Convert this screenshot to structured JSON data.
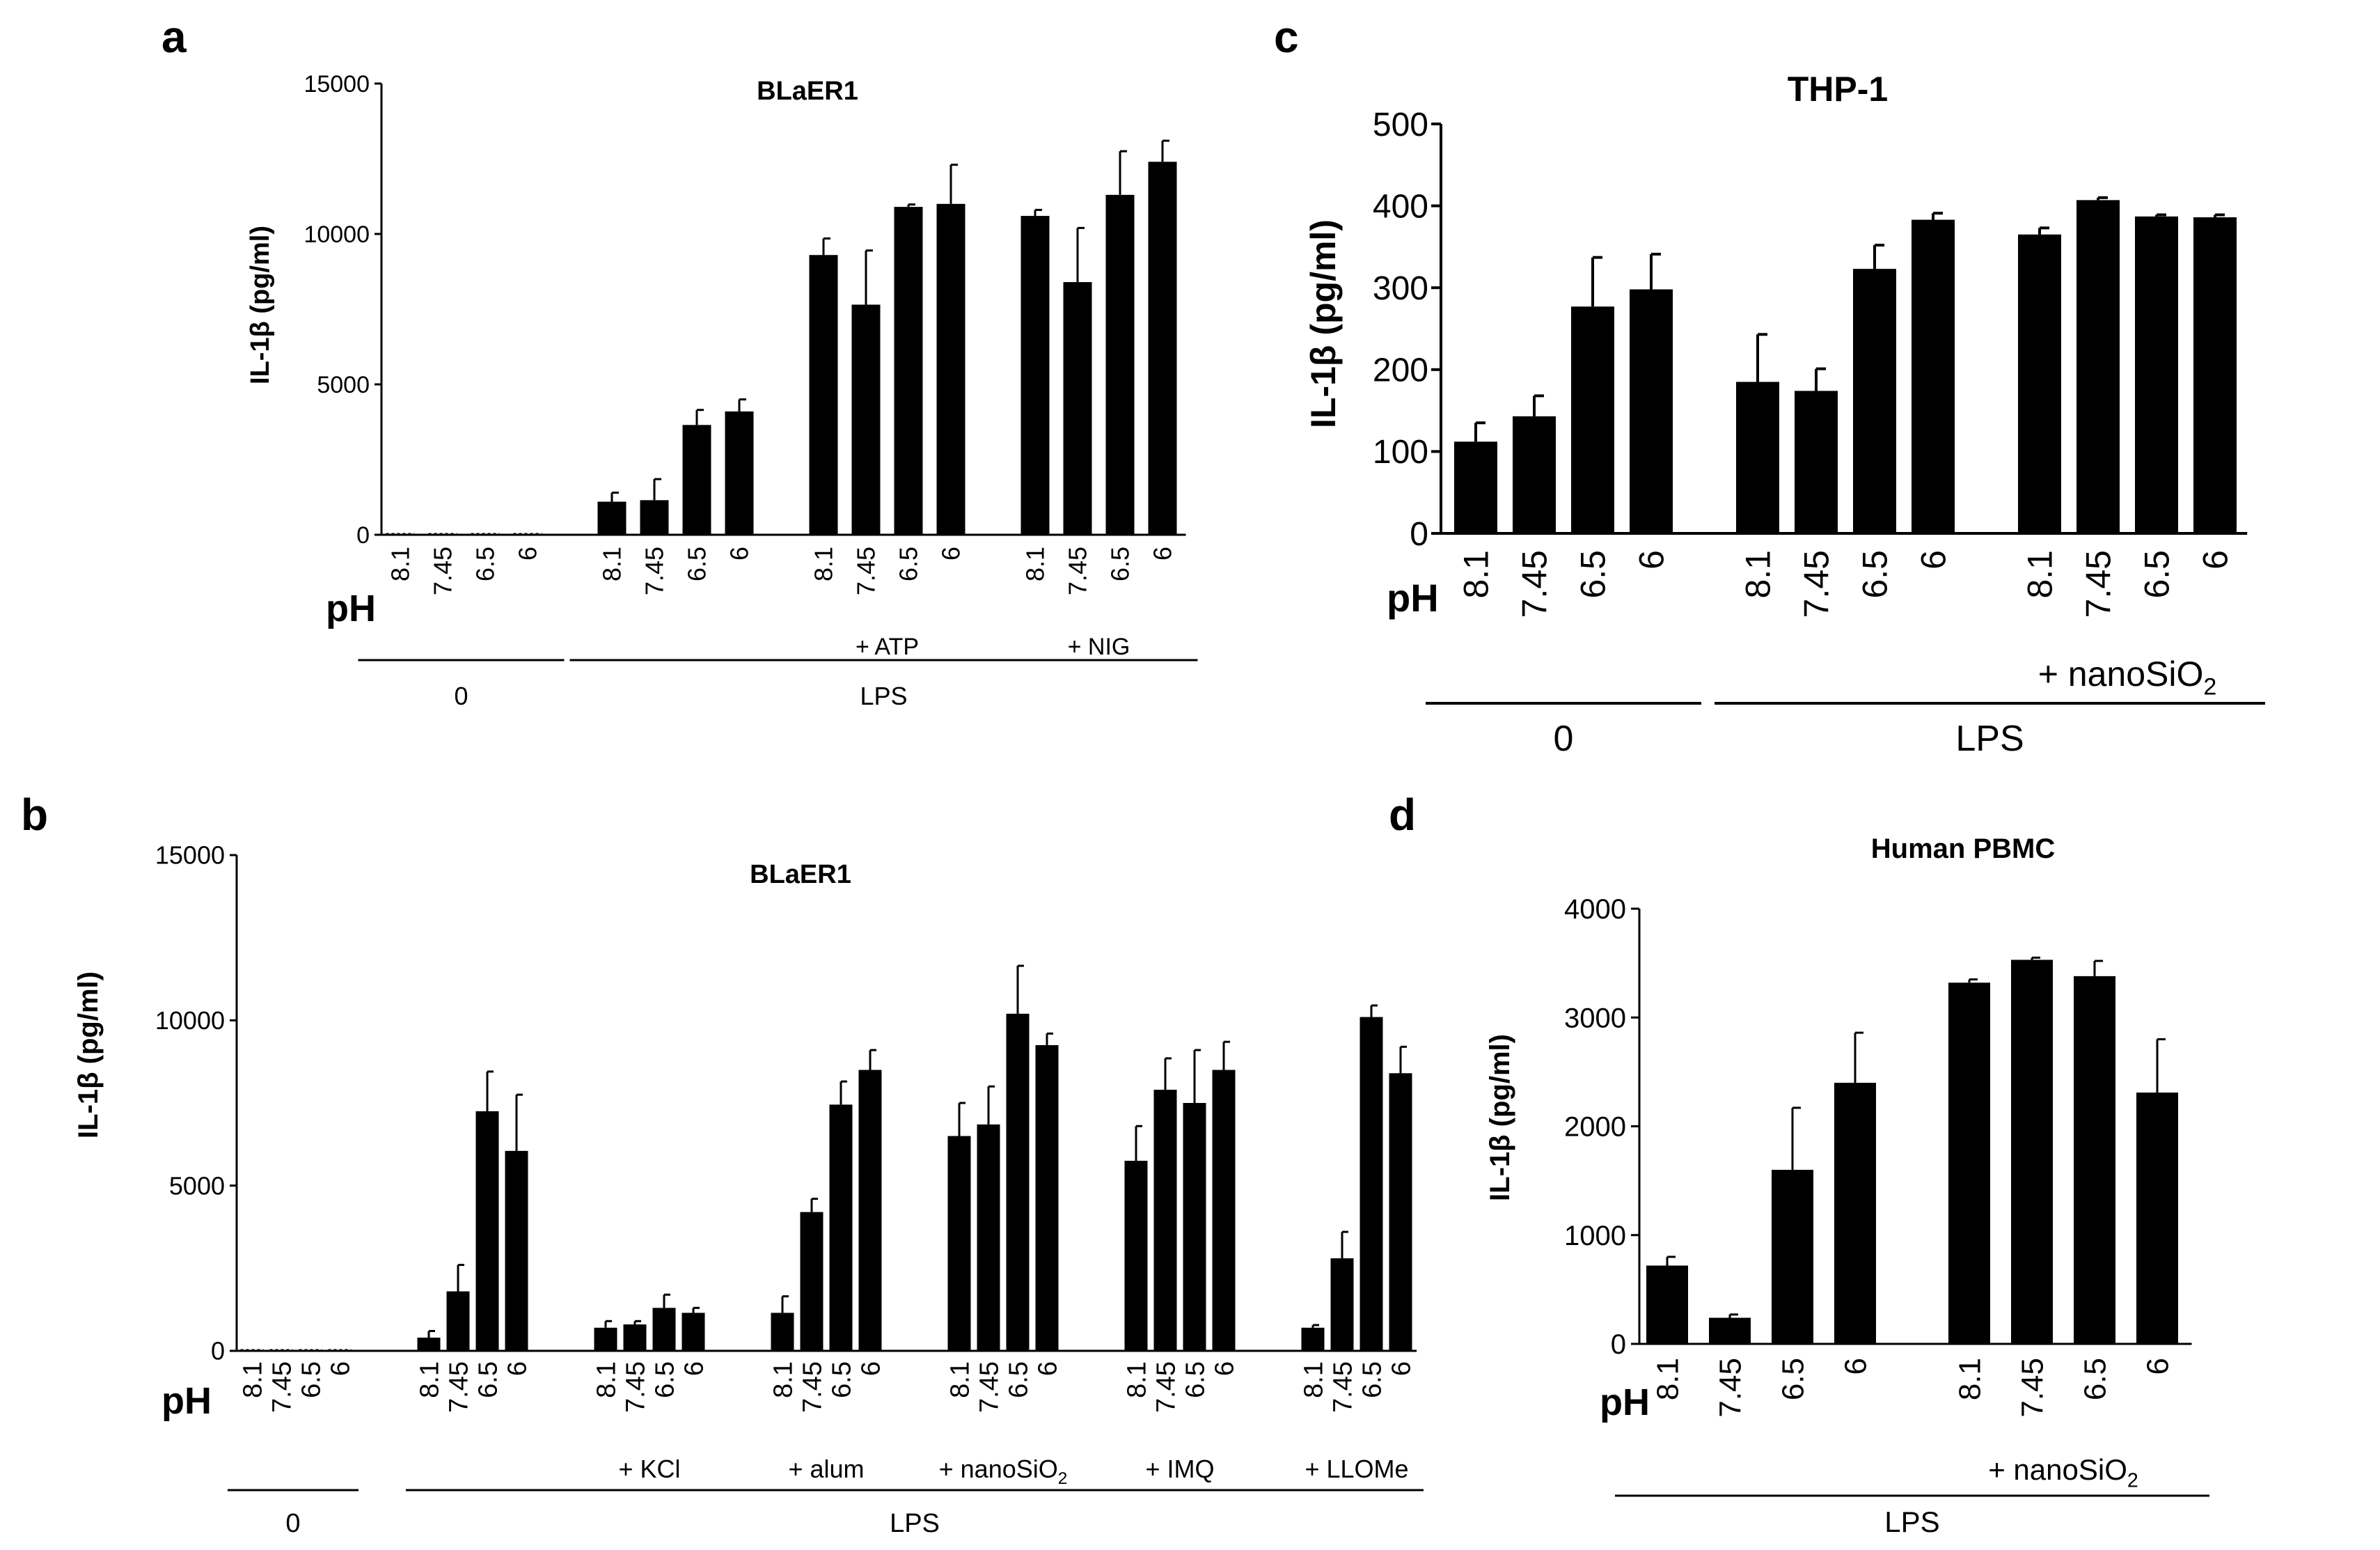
{
  "figure": {
    "background": "#ffffff",
    "bar_color": "#000000"
  },
  "chart_data": [
    {
      "id": "a",
      "panel_label": "a",
      "type": "bar",
      "title": "BLaER1",
      "ylabel": "IL-1β (pg/ml)",
      "ylim": [
        0,
        15000
      ],
      "yticks": [
        0,
        5000,
        10000,
        15000
      ],
      "x_prefix": "pH",
      "groups": [
        {
          "ph": [
            "8.1",
            "7.45",
            "6.5",
            "6"
          ],
          "values": [
            0,
            0,
            0,
            0
          ],
          "errors": [
            0,
            0,
            0,
            0
          ]
        },
        {
          "ph": [
            "8.1",
            "7.45",
            "6.5",
            "6"
          ],
          "values": [
            1100,
            1150,
            3650,
            4100
          ],
          "errors": [
            300,
            700,
            500,
            400
          ]
        },
        {
          "ph": [
            "8.1",
            "7.45",
            "6.5",
            "6"
          ],
          "values": [
            9300,
            7650,
            10900,
            11000
          ],
          "errors": [
            550,
            1800,
            80,
            1300
          ],
          "label": "+ ATP"
        },
        {
          "ph": [
            "8.1",
            "7.45",
            "6.5",
            "6"
          ],
          "values": [
            10600,
            8400,
            11300,
            12400
          ],
          "errors": [
            200,
            1800,
            1450,
            700
          ],
          "label": "+ NIG"
        }
      ],
      "treatments": [
        {
          "label": "0",
          "groups": [
            0,
            0
          ]
        },
        {
          "label": "LPS",
          "groups": [
            1,
            3
          ]
        }
      ],
      "grid": false
    },
    {
      "id": "b",
      "panel_label": "b",
      "type": "bar",
      "title": "BLaER1",
      "ylabel": "IL-1β (pg/ml)",
      "ylim": [
        0,
        15000
      ],
      "yticks": [
        0,
        5000,
        10000,
        15000
      ],
      "x_prefix": "pH",
      "groups": [
        {
          "ph": [
            "8.1",
            "7.45",
            "6.5",
            "6"
          ],
          "values": [
            0,
            0,
            0,
            0
          ],
          "errors": [
            0,
            0,
            0,
            0
          ]
        },
        {
          "ph": [
            "8.1",
            "7.45",
            "6.5",
            "6"
          ],
          "values": [
            400,
            1800,
            7250,
            6050
          ],
          "errors": [
            200,
            800,
            1200,
            1700
          ]
        },
        {
          "ph": [
            "8.1",
            "7.45",
            "6.5",
            "6"
          ],
          "values": [
            700,
            800,
            1300,
            1150
          ],
          "errors": [
            200,
            100,
            400,
            150
          ],
          "label": "+ KCl"
        },
        {
          "ph": [
            "8.1",
            "7.45",
            "6.5",
            "6"
          ],
          "values": [
            1150,
            4200,
            7450,
            8500
          ],
          "errors": [
            500,
            400,
            700,
            600
          ],
          "label": "+ alum"
        },
        {
          "ph": [
            "8.1",
            "7.45",
            "6.5",
            "6"
          ],
          "values": [
            6500,
            6850,
            10200,
            9250
          ],
          "errors": [
            1000,
            1150,
            1450,
            350
          ],
          "label": "+ nanoSiO",
          "label_sub": "2"
        },
        {
          "ph": [
            "8.1",
            "7.45",
            "6.5",
            "6"
          ],
          "values": [
            5750,
            7900,
            7500,
            8500
          ],
          "errors": [
            1050,
            950,
            1600,
            850
          ],
          "label": "+ IMQ"
        },
        {
          "ph": [
            "8.1",
            "7.45",
            "6.5",
            "6"
          ],
          "values": [
            700,
            2800,
            10100,
            8400
          ],
          "errors": [
            80,
            800,
            350,
            800
          ],
          "label": "+ LLOMe"
        }
      ],
      "treatments": [
        {
          "label": "0",
          "groups": [
            0,
            0
          ]
        },
        {
          "label": "LPS",
          "groups": [
            1,
            6
          ]
        }
      ],
      "grid": false
    },
    {
      "id": "c",
      "panel_label": "c",
      "type": "bar",
      "title": "THP-1",
      "ylabel": "IL-1β (pg/ml)",
      "ylim": [
        0,
        500
      ],
      "yticks": [
        0,
        100,
        200,
        300,
        400,
        500
      ],
      "x_prefix": "pH",
      "groups": [
        {
          "ph": [
            "8.1",
            "7.45",
            "6.5",
            "6"
          ],
          "values": [
            112,
            143,
            277,
            298
          ],
          "errors": [
            23,
            25,
            60,
            43
          ]
        },
        {
          "ph": [
            "8.1",
            "7.45",
            "6.5",
            "6"
          ],
          "values": [
            185,
            174,
            323,
            383
          ],
          "errors": [
            58,
            27,
            29,
            8
          ]
        },
        {
          "ph": [
            "8.1",
            "7.45",
            "6.5",
            "6"
          ],
          "values": [
            365,
            407,
            387,
            386
          ],
          "errors": [
            8,
            3,
            2,
            3
          ],
          "label": "+ nanoSiO",
          "label_sub": "2"
        }
      ],
      "treatments": [
        {
          "label": "0",
          "groups": [
            0,
            0
          ]
        },
        {
          "label": "LPS",
          "groups": [
            1,
            2
          ]
        }
      ],
      "grid": false
    },
    {
      "id": "d",
      "panel_label": "d",
      "type": "bar",
      "title": "Human PBMC",
      "ylabel": "IL-1β (pg/ml)",
      "ylim": [
        0,
        4000
      ],
      "yticks": [
        0,
        1000,
        2000,
        3000,
        4000
      ],
      "x_prefix": "pH",
      "groups": [
        {
          "ph": [
            "8.1",
            "7.45",
            "6.5",
            "6"
          ],
          "values": [
            720,
            240,
            1600,
            2400
          ],
          "errors": [
            80,
            30,
            570,
            460
          ]
        },
        {
          "ph": [
            "8.1",
            "7.45",
            "6.5",
            "6"
          ],
          "values": [
            3320,
            3530,
            3380,
            2310
          ],
          "errors": [
            30,
            20,
            140,
            490
          ],
          "label": "+ nanoSiO",
          "label_sub": "2"
        }
      ],
      "treatments": [
        {
          "label": "LPS",
          "groups": [
            0,
            1
          ]
        }
      ],
      "grid": false
    }
  ]
}
